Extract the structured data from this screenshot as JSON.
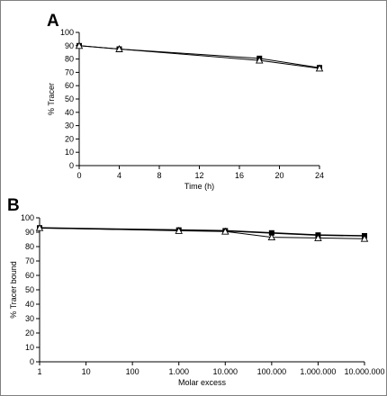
{
  "chart_data": [
    {
      "type": "line",
      "panel_label": "A",
      "xlabel": "Time (h)",
      "ylabel": "% Tracer",
      "xlim": [
        0,
        24
      ],
      "ylim": [
        0,
        100
      ],
      "x_ticks": [
        0,
        4,
        8,
        12,
        16,
        20,
        24
      ],
      "y_ticks": [
        0,
        10,
        20,
        30,
        40,
        50,
        60,
        70,
        80,
        90,
        100
      ],
      "grid": false,
      "series": [
        {
          "marker": "filled-square",
          "x": [
            0,
            4,
            18,
            24
          ],
          "y": [
            90,
            87.5,
            80.5,
            73.5
          ]
        },
        {
          "marker": "open-triangle",
          "x": [
            0,
            4,
            18,
            24
          ],
          "y": [
            90,
            87.5,
            79,
            73
          ]
        }
      ]
    },
    {
      "type": "line",
      "panel_label": "B",
      "xlabel": "Molar excess",
      "ylabel": "% Tracer bound",
      "x_scale": "log",
      "xlim": [
        1,
        10000000
      ],
      "ylim": [
        0,
        100
      ],
      "x_ticks": [
        1,
        10,
        100,
        1000,
        10000,
        100000,
        1000000,
        10000000
      ],
      "x_tick_labels": [
        "1",
        "10",
        "100",
        "1.000",
        "10.000",
        "100.000",
        "1.000.000",
        "10.000.000"
      ],
      "y_ticks": [
        0,
        10,
        20,
        30,
        40,
        50,
        60,
        70,
        80,
        90,
        100
      ],
      "grid": false,
      "series": [
        {
          "marker": "filled-square",
          "x": [
            1,
            1000,
            10000,
            100000,
            1000000,
            10000000
          ],
          "y": [
            93,
            91.5,
            91,
            89.5,
            88,
            87.5
          ]
        },
        {
          "marker": "open-triangle",
          "x": [
            1,
            1000,
            10000,
            100000,
            1000000,
            10000000
          ],
          "y": [
            93,
            91,
            90.5,
            86.5,
            86,
            85.5
          ]
        }
      ]
    }
  ]
}
